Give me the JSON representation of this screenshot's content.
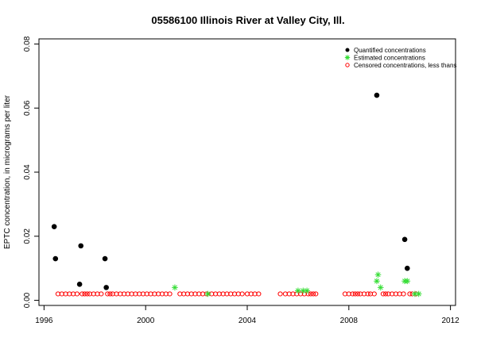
{
  "chart_data": {
    "type": "scatter",
    "title": "05586100 Illinois River at Valley City, Ill.",
    "xlabel": "",
    "ylabel": "EPTC concentration, in micrograms per liter",
    "xlim": [
      1996,
      2012
    ],
    "ylim": [
      0,
      0.08
    ],
    "xticks": [
      "1996",
      "2000",
      "2004",
      "2008",
      "2012"
    ],
    "yticks": [
      "0.00",
      "0.02",
      "0.04",
      "0.06",
      "0.08"
    ],
    "legend_position": "top-right",
    "grid": false,
    "series": [
      {
        "name": "Quantified concentrations",
        "marker": "filled-circle",
        "color": "#000000",
        "points": [
          [
            1996.4,
            0.023
          ],
          [
            1996.45,
            0.013
          ],
          [
            1997.4,
            0.005
          ],
          [
            1997.45,
            0.017
          ],
          [
            1998.4,
            0.013
          ],
          [
            1998.45,
            0.004
          ],
          [
            2009.1,
            0.064
          ],
          [
            2010.2,
            0.019
          ],
          [
            2010.3,
            0.01
          ]
        ]
      },
      {
        "name": "Estimated concentrations",
        "marker": "asterisk",
        "color": "#33dd33",
        "points": [
          [
            2001.15,
            0.004
          ],
          [
            2002.45,
            0.002
          ],
          [
            2006.0,
            0.003
          ],
          [
            2006.2,
            0.003
          ],
          [
            2006.35,
            0.003
          ],
          [
            2009.1,
            0.006
          ],
          [
            2009.15,
            0.008
          ],
          [
            2009.25,
            0.004
          ],
          [
            2010.2,
            0.006
          ],
          [
            2010.3,
            0.006
          ],
          [
            2010.6,
            0.002
          ],
          [
            2010.75,
            0.002
          ]
        ]
      },
      {
        "name": "Censored concentrations, less thans",
        "marker": "open-circle",
        "color": "#ff0000",
        "points": [
          [
            1996.55,
            0.002
          ],
          [
            1996.7,
            0.002
          ],
          [
            1996.85,
            0.002
          ],
          [
            1997.0,
            0.002
          ],
          [
            1997.15,
            0.002
          ],
          [
            1997.3,
            0.002
          ],
          [
            1997.5,
            0.002
          ],
          [
            1997.6,
            0.002
          ],
          [
            1997.7,
            0.002
          ],
          [
            1997.8,
            0.002
          ],
          [
            1997.95,
            0.002
          ],
          [
            1998.1,
            0.002
          ],
          [
            1998.25,
            0.002
          ],
          [
            1998.5,
            0.002
          ],
          [
            1998.6,
            0.002
          ],
          [
            1998.7,
            0.002
          ],
          [
            1998.85,
            0.002
          ],
          [
            1999.0,
            0.002
          ],
          [
            1999.15,
            0.002
          ],
          [
            1999.3,
            0.002
          ],
          [
            1999.45,
            0.002
          ],
          [
            1999.6,
            0.002
          ],
          [
            1999.75,
            0.002
          ],
          [
            1999.9,
            0.002
          ],
          [
            2000.05,
            0.002
          ],
          [
            2000.2,
            0.002
          ],
          [
            2000.35,
            0.002
          ],
          [
            2000.5,
            0.002
          ],
          [
            2000.65,
            0.002
          ],
          [
            2000.8,
            0.002
          ],
          [
            2000.95,
            0.002
          ],
          [
            2001.35,
            0.002
          ],
          [
            2001.5,
            0.002
          ],
          [
            2001.65,
            0.002
          ],
          [
            2001.8,
            0.002
          ],
          [
            2001.95,
            0.002
          ],
          [
            2002.1,
            0.002
          ],
          [
            2002.25,
            0.002
          ],
          [
            2002.4,
            0.002
          ],
          [
            2002.6,
            0.002
          ],
          [
            2002.75,
            0.002
          ],
          [
            2002.9,
            0.002
          ],
          [
            2003.05,
            0.002
          ],
          [
            2003.2,
            0.002
          ],
          [
            2003.35,
            0.002
          ],
          [
            2003.5,
            0.002
          ],
          [
            2003.65,
            0.002
          ],
          [
            2003.8,
            0.002
          ],
          [
            2004.0,
            0.002
          ],
          [
            2004.15,
            0.002
          ],
          [
            2004.3,
            0.002
          ],
          [
            2004.45,
            0.002
          ],
          [
            2005.3,
            0.002
          ],
          [
            2005.5,
            0.002
          ],
          [
            2005.65,
            0.002
          ],
          [
            2005.8,
            0.002
          ],
          [
            2005.95,
            0.002
          ],
          [
            2006.1,
            0.002
          ],
          [
            2006.25,
            0.002
          ],
          [
            2006.4,
            0.002
          ],
          [
            2006.5,
            0.002
          ],
          [
            2006.6,
            0.002
          ],
          [
            2006.7,
            0.002
          ],
          [
            2007.85,
            0.002
          ],
          [
            2008.0,
            0.002
          ],
          [
            2008.15,
            0.002
          ],
          [
            2008.25,
            0.002
          ],
          [
            2008.35,
            0.002
          ],
          [
            2008.45,
            0.002
          ],
          [
            2008.6,
            0.002
          ],
          [
            2008.75,
            0.002
          ],
          [
            2008.85,
            0.002
          ],
          [
            2009.0,
            0.002
          ],
          [
            2009.35,
            0.002
          ],
          [
            2009.45,
            0.002
          ],
          [
            2009.55,
            0.002
          ],
          [
            2009.7,
            0.002
          ],
          [
            2009.85,
            0.002
          ],
          [
            2010.0,
            0.002
          ],
          [
            2010.15,
            0.002
          ],
          [
            2010.4,
            0.002
          ],
          [
            2010.5,
            0.002
          ],
          [
            2010.65,
            0.002
          ]
        ]
      }
    ]
  }
}
